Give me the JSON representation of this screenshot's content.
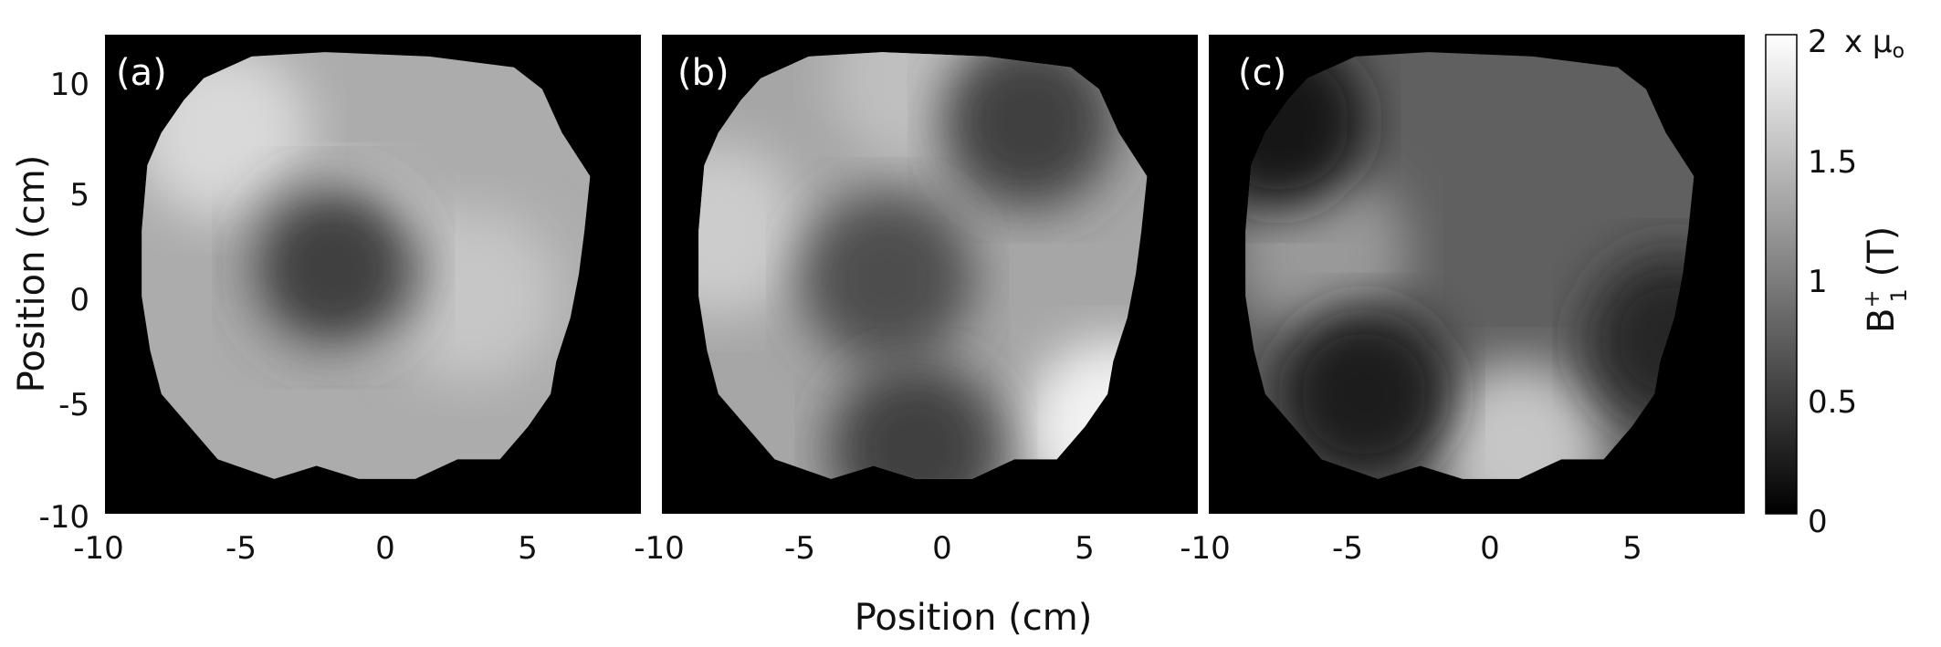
{
  "chart_data": {
    "type": "heatmap",
    "description_free": true,
    "panels": [
      {
        "label": "(a)",
        "fill_level": 1.35,
        "highlights": [
          [
            -1.5,
            1.5,
            2.0
          ],
          [
            -5.8,
            7.5,
            1.7
          ],
          [
            3,
            0,
            1.55
          ]
        ],
        "shadows": [
          [
            -1.9,
            1.3,
            0.5
          ]
        ]
      },
      {
        "label": "(b)",
        "fill_level": 1.3,
        "highlights": [
          [
            -8,
            3,
            1.6
          ],
          [
            6,
            -6,
            1.9
          ],
          [
            -1,
            10,
            1.5
          ]
        ],
        "shadows": [
          [
            3,
            8,
            0.5
          ],
          [
            -2,
            0.8,
            0.6
          ],
          [
            -1,
            -7,
            0.5
          ]
        ]
      },
      {
        "label": "(c)",
        "fill_level": 0.75,
        "highlights": [
          [
            1,
            -7,
            1.55
          ],
          [
            -6,
            2,
            1.2
          ]
        ],
        "shadows": [
          [
            -7.5,
            8,
            0.15
          ],
          [
            -4.5,
            -4.5,
            0.2
          ],
          [
            6.5,
            -2,
            0.3
          ]
        ]
      }
    ],
    "x_ticks": [
      "-10",
      "-5",
      "0",
      "5"
    ],
    "y_ticks": [
      "10",
      "5",
      "0",
      "-5",
      "-10"
    ],
    "xlabel": "Position (cm)",
    "ylabel": "Position (cm)",
    "xlim": [
      -10,
      9
    ],
    "ylim": [
      -10,
      12
    ],
    "colorbar": {
      "ticks": [
        "2",
        "1.5",
        "1",
        "0.5",
        "0"
      ],
      "range": [
        0,
        2
      ],
      "unit_prefix": "x μ",
      "unit_subscript": "o",
      "label_main": "B",
      "label_sup": "+",
      "label_sub": "1",
      "label_tail": " (T)"
    },
    "colors": {
      "background": "#000000",
      "colormap": "gray"
    }
  }
}
